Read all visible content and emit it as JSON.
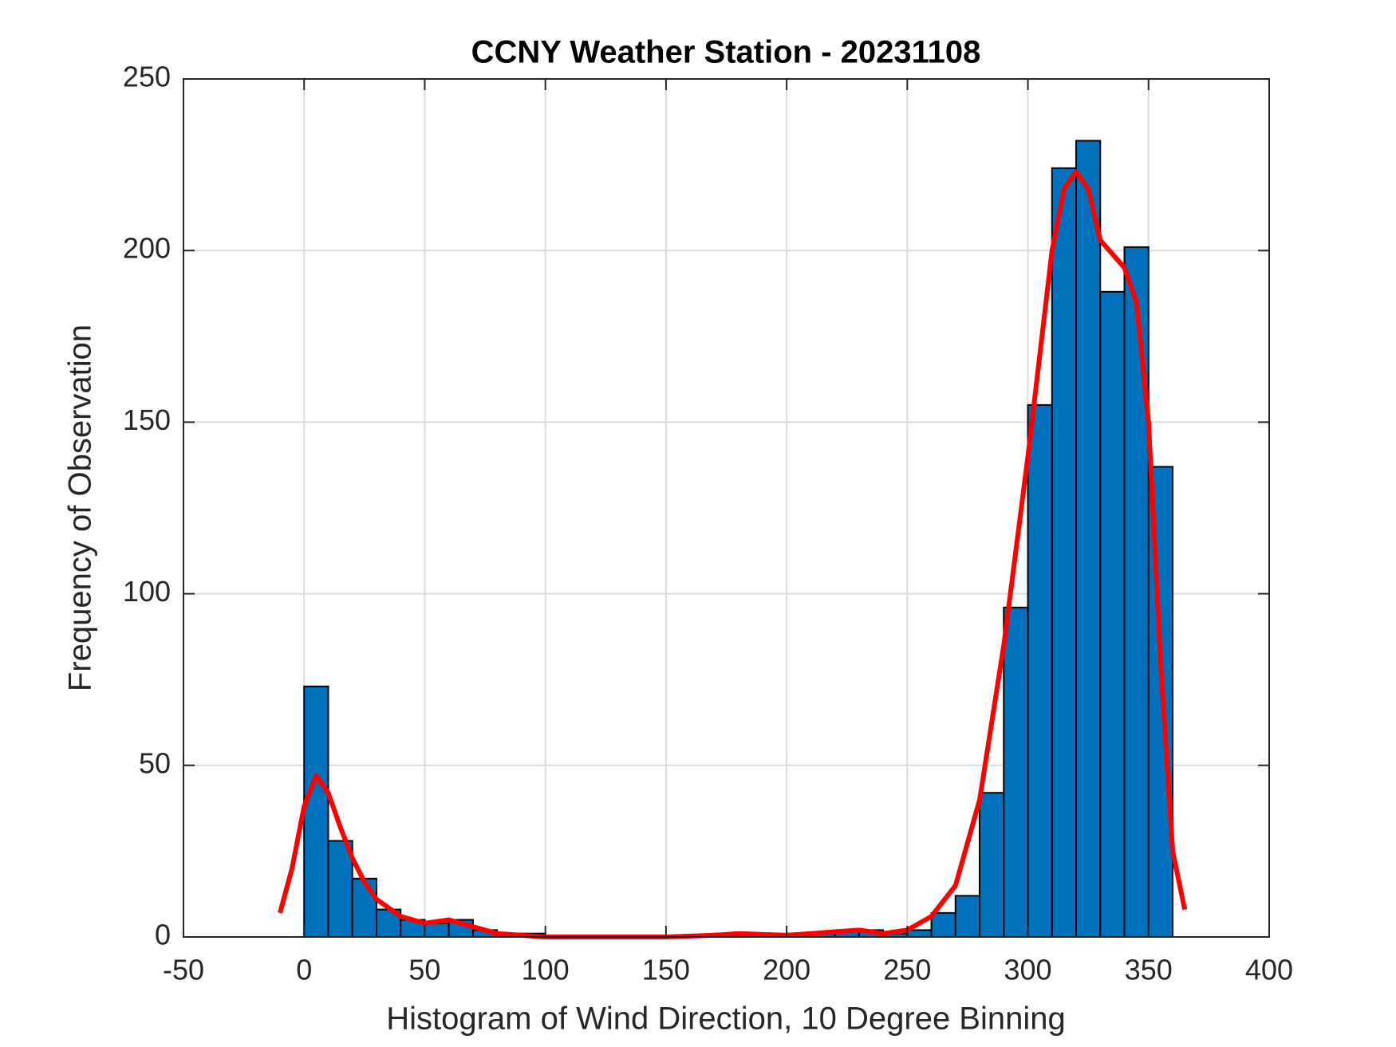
{
  "chart_data": {
    "type": "histogram",
    "title": "CCNY Weather Station - 20231108",
    "x_label": "Histogram of Wind Direction, 10 Degree Binning",
    "y_label": "Frequency of Observation",
    "bins": [
      0,
      10,
      20,
      30,
      40,
      50,
      60,
      70,
      80,
      90,
      100,
      110,
      120,
      130,
      140,
      150,
      160,
      170,
      180,
      190,
      200,
      210,
      220,
      230,
      240,
      250,
      260,
      270,
      280,
      290,
      300,
      310,
      320,
      330,
      340,
      350,
      360
    ],
    "values": [
      73,
      28,
      17,
      8,
      5,
      4,
      5,
      2,
      1,
      1,
      0,
      0,
      0,
      0,
      0,
      0,
      0,
      1,
      1,
      0,
      1,
      1,
      2,
      2,
      1,
      2,
      7,
      12,
      42,
      96,
      155,
      224,
      232,
      188,
      201,
      137
    ],
    "color": "#0072bd",
    "curve": {
      "color": "#ff0000",
      "x": [
        -10,
        -5,
        0,
        5,
        10,
        15,
        20,
        25,
        30,
        40,
        50,
        60,
        70,
        80,
        90,
        100,
        150,
        170,
        180,
        200,
        210,
        220,
        230,
        240,
        250,
        260,
        270,
        280,
        290,
        300,
        310,
        315,
        320,
        325,
        330,
        340,
        345,
        350,
        355,
        360,
        365
      ],
      "y": [
        7,
        20,
        38,
        47,
        42,
        32,
        23,
        16,
        11,
        6,
        4,
        5,
        3,
        1,
        0.5,
        0,
        0,
        0.5,
        1,
        0.5,
        1,
        1.5,
        2,
        1,
        2,
        6,
        15,
        40,
        85,
        140,
        200,
        218,
        223,
        218,
        203,
        195,
        185,
        150,
        80,
        25,
        8
      ]
    },
    "xlim": [
      -50,
      400
    ],
    "xticks": [
      -50,
      0,
      50,
      100,
      150,
      200,
      250,
      300,
      350,
      400
    ],
    "ylim": [
      0,
      250
    ],
    "yticks": [
      0,
      50,
      100,
      150,
      200,
      250
    ],
    "grid": true
  }
}
